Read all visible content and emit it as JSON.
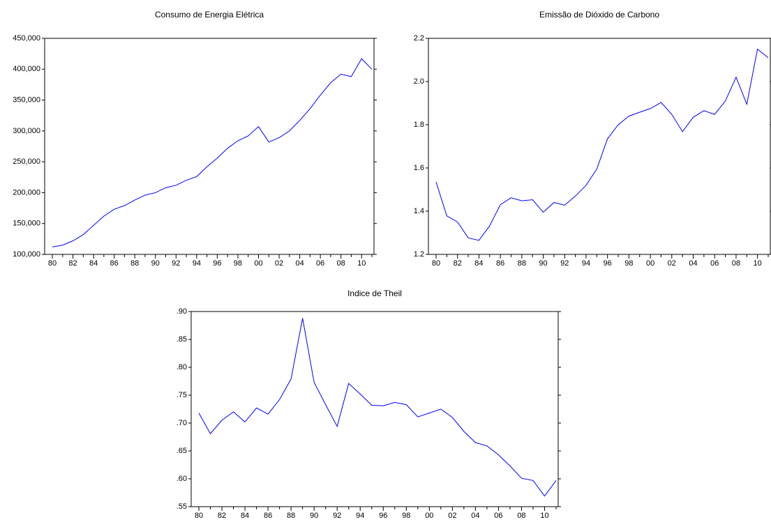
{
  "chart_data": [
    {
      "type": "line",
      "title": "Consumo de Energia Elétrica",
      "categories": [
        "80",
        null,
        "82",
        null,
        "84",
        null,
        "86",
        null,
        "88",
        null,
        "90",
        null,
        "92",
        null,
        "94",
        null,
        "96",
        null,
        "98",
        null,
        "00",
        null,
        "02",
        null,
        "04",
        null,
        "06",
        null,
        "08",
        null,
        "10",
        null
      ],
      "values": [
        112000,
        115000,
        122000,
        132000,
        147000,
        162000,
        173000,
        179000,
        188000,
        196000,
        200000,
        208000,
        212000,
        220000,
        226000,
        242000,
        256000,
        272000,
        284000,
        292000,
        307000,
        282000,
        289000,
        300000,
        317000,
        336000,
        358000,
        378000,
        392000,
        388000,
        417000,
        400000
      ],
      "color": "#0000ff",
      "ylim": [
        100000,
        450000
      ],
      "yticks": [
        {
          "value": 100000,
          "label": "100,000"
        },
        {
          "value": 150000,
          "label": "150,000"
        },
        {
          "value": 200000,
          "label": "200,000"
        },
        {
          "value": 250000,
          "label": "250,000"
        },
        {
          "value": 300000,
          "label": "300,000"
        },
        {
          "value": 350000,
          "label": "350,000"
        },
        {
          "value": 400000,
          "label": "400,000"
        },
        {
          "value": 450000,
          "label": "450,000"
        }
      ]
    },
    {
      "type": "line",
      "title": "Emissão de Dióxido de Carbono",
      "categories": [
        "80",
        null,
        "82",
        null,
        "84",
        null,
        "86",
        null,
        "88",
        null,
        "90",
        null,
        "92",
        null,
        "94",
        null,
        "96",
        null,
        "98",
        null,
        "00",
        null,
        "02",
        null,
        "04",
        null,
        "06",
        null,
        "08",
        null,
        "10",
        null
      ],
      "values": [
        1.535,
        1.378,
        1.35,
        1.276,
        1.265,
        1.332,
        1.43,
        1.462,
        1.448,
        1.453,
        1.395,
        1.44,
        1.428,
        1.47,
        1.52,
        1.595,
        1.735,
        1.8,
        1.84,
        1.858,
        1.875,
        1.903,
        1.848,
        1.768,
        1.835,
        1.865,
        1.848,
        1.91,
        2.02,
        1.895,
        2.15,
        2.11
      ],
      "color": "#0000ff",
      "ylim": [
        1.2,
        2.2
      ],
      "yticks": [
        1.2,
        1.4,
        1.6,
        1.8,
        {
          "value": 2,
          "label": "2.0"
        },
        2.2
      ]
    },
    {
      "type": "line",
      "title": "Indice de Theil",
      "categories": [
        "80",
        null,
        "82",
        null,
        "84",
        null,
        "86",
        null,
        "88",
        null,
        "90",
        null,
        "92",
        null,
        "94",
        null,
        "96",
        null,
        "98",
        null,
        "00",
        null,
        "02",
        null,
        "04",
        null,
        "06",
        null,
        "08",
        null,
        "10",
        null
      ],
      "values": [
        0.718,
        0.681,
        0.705,
        0.72,
        0.702,
        0.727,
        0.716,
        0.742,
        0.779,
        0.888,
        0.773,
        0.733,
        0.694,
        0.771,
        0.752,
        0.732,
        0.731,
        0.737,
        0.733,
        0.711,
        0.718,
        0.725,
        0.71,
        0.685,
        0.665,
        0.659,
        0.643,
        0.623,
        0.601,
        0.597,
        0.569,
        0.597
      ],
      "color": "#0000ff",
      "ylim": [
        0.55,
        0.9
      ],
      "yticks": [
        {
          "value": 0.55,
          "label": ".55"
        },
        {
          "value": 0.6,
          "label": ".60"
        },
        {
          "value": 0.65,
          "label": ".65"
        },
        {
          "value": 0.7,
          "label": ".70"
        },
        {
          "value": 0.75,
          "label": ".75"
        },
        {
          "value": 0.8,
          "label": ".80"
        },
        {
          "value": 0.85,
          "label": ".85"
        },
        {
          "value": 0.9,
          "label": ".90"
        }
      ]
    }
  ]
}
